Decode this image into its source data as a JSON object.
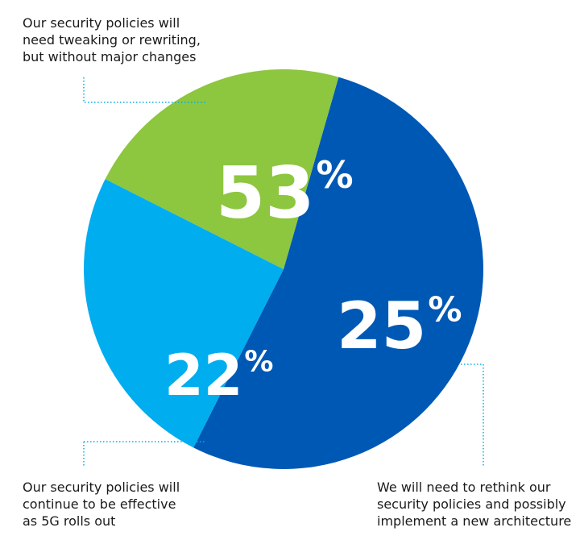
{
  "chart_data": {
    "type": "pie",
    "slices": [
      {
        "value": 53,
        "label": "53%",
        "color": "#0058b5",
        "description_lines": [
          "Our security policies will",
          "need tweaking or rewriting,",
          "but without major changes"
        ]
      },
      {
        "value": 25,
        "label": "25%",
        "color": "#00adef",
        "description_lines": [
          "We will need to rethink our",
          "security policies and possibly",
          "implement a new architecture"
        ]
      },
      {
        "value": 22,
        "label": "22%",
        "color": "#8dc63f",
        "description_lines": [
          "Our security policies will",
          "continue to be effective",
          "as 5G rolls out"
        ]
      }
    ],
    "start_angle_deg": 74,
    "direction": "clockwise",
    "leader_color": "#00adef",
    "label_color": "#ffffff"
  }
}
